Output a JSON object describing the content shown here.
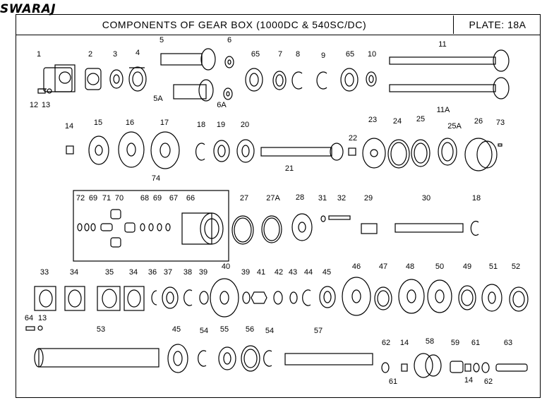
{
  "brand": {
    "logo": "SWARAJ"
  },
  "header": {
    "title": "COMPONENTS OF GEAR BOX (1000DC & 540SC/DC)",
    "plate": "PLATE: 18A"
  },
  "callouts": [
    "1",
    "2",
    "3",
    "4",
    "5",
    "5A",
    "6",
    "6A",
    "65",
    "7",
    "8",
    "9",
    "65",
    "10",
    "11",
    "11A",
    "12",
    "13",
    "14",
    "15",
    "16",
    "17",
    "18",
    "19",
    "20",
    "21",
    "22",
    "23",
    "24",
    "25",
    "25A",
    "26",
    "73",
    "74",
    "72",
    "69",
    "71",
    "70",
    "68",
    "69",
    "67",
    "66",
    "27",
    "27A",
    "28",
    "31",
    "32",
    "29",
    "30",
    "18",
    "33",
    "34",
    "35",
    "34",
    "36",
    "37",
    "38",
    "39",
    "40",
    "39",
    "41",
    "42",
    "43",
    "44",
    "45",
    "46",
    "47",
    "48",
    "50",
    "49",
    "51",
    "52",
    "64",
    "13",
    "53",
    "45",
    "54",
    "55",
    "56",
    "54",
    "57",
    "62",
    "14",
    "58",
    "59",
    "61",
    "63",
    "61",
    "14",
    "62"
  ]
}
